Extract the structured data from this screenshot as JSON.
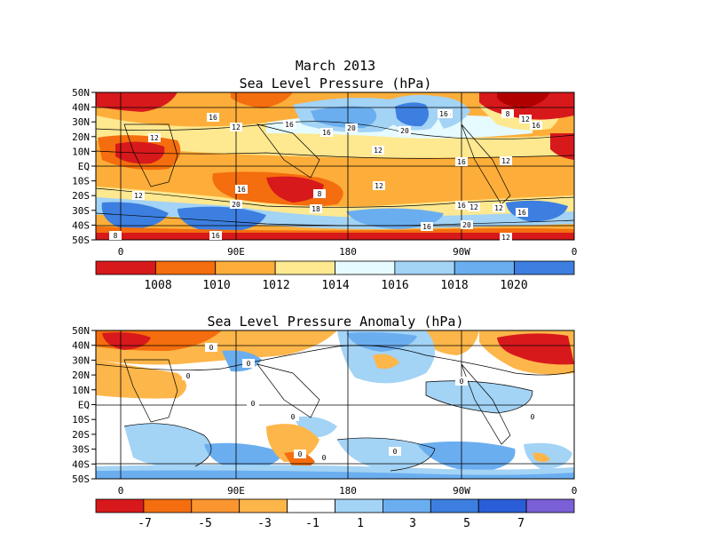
{
  "page": {
    "title": "March 2013"
  },
  "panels": [
    {
      "id": "slp",
      "title": "Sea Level Pressure (hPa)",
      "lat_ticks": [
        "50N",
        "40N",
        "30N",
        "20N",
        "10N",
        "EQ",
        "10S",
        "20S",
        "30S",
        "40S",
        "50S"
      ],
      "lon_ticks": [
        "0",
        "90E",
        "180",
        "90W",
        "0"
      ],
      "colorbar": {
        "colors": [
          "#d7191c",
          "#f46d0e",
          "#fdae3a",
          "#fee890",
          "#e6fbff",
          "#a3d3f5",
          "#6baef0",
          "#3d7fe0"
        ],
        "labels": [
          "1008",
          "1010",
          "1012",
          "1014",
          "1016",
          "1018",
          "1020"
        ]
      },
      "contour_labels": [
        "16",
        "12",
        "16",
        "16",
        "20",
        "20",
        "16",
        "16",
        "16",
        "8",
        "12",
        "16",
        "12",
        "12",
        "12",
        "12",
        "12",
        "16",
        "20",
        "12",
        "8",
        "18",
        "12",
        "16",
        "20",
        "16",
        "12",
        "8",
        "16",
        "16"
      ]
    },
    {
      "id": "anom",
      "title": "Sea Level Pressure Anomaly (hPa)",
      "lat_ticks": [
        "50N",
        "40N",
        "30N",
        "20N",
        "10N",
        "EQ",
        "10S",
        "20S",
        "30S",
        "40S",
        "50S"
      ],
      "lon_ticks": [
        "0",
        "90E",
        "180",
        "90W",
        "0"
      ],
      "colorbar": {
        "colors": [
          "#d7191c",
          "#f46d0e",
          "#fb9530",
          "#fdb64a",
          "#ffffff",
          "#a3d3f5",
          "#6baef0",
          "#3d7fe0",
          "#2a5ed8",
          "#7a5fd6"
        ],
        "labels": [
          "-7",
          "-5",
          "-3",
          "-1",
          "1",
          "3",
          "5",
          "7"
        ]
      },
      "contour_labels": [
        "0",
        "0",
        "0",
        "0",
        "0",
        "0",
        "0",
        "0",
        "0",
        "0"
      ]
    }
  ]
}
